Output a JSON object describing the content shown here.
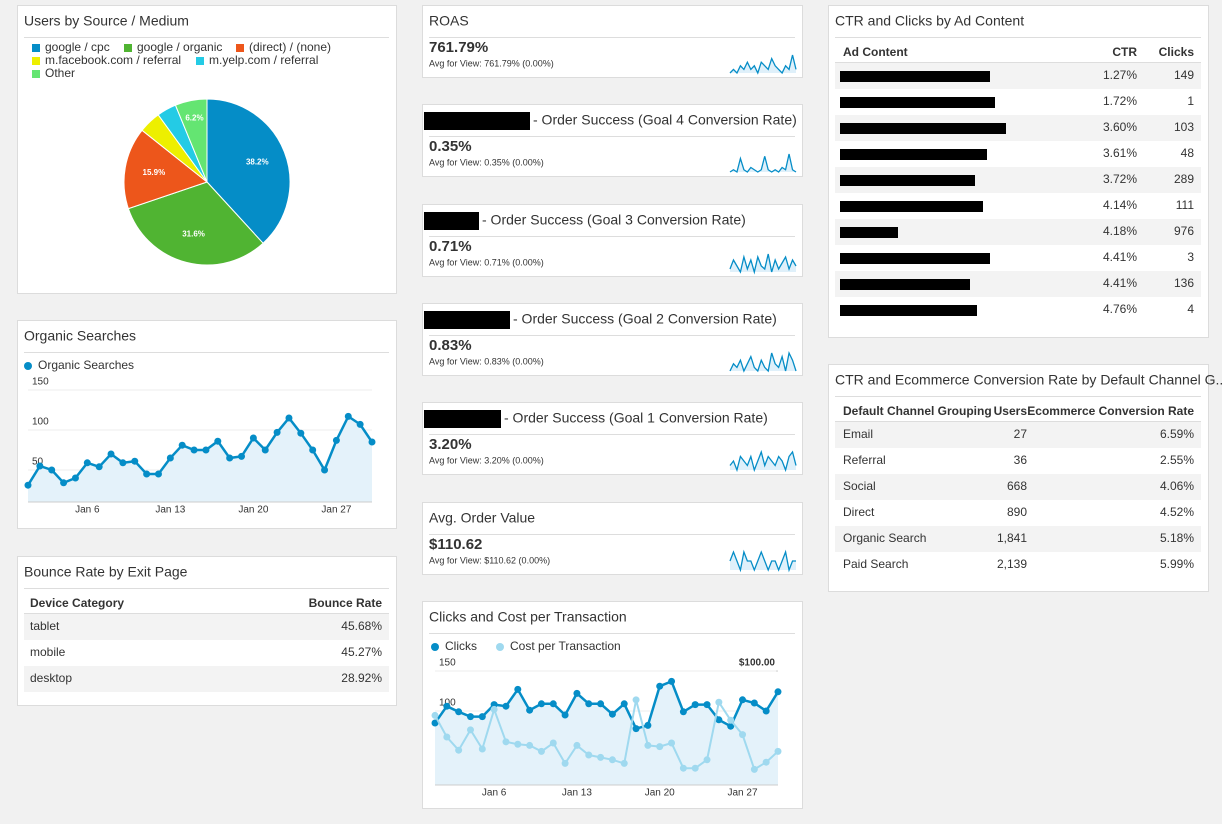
{
  "chart_data": [
    {
      "type": "pie",
      "title": "Users by Source / Medium",
      "categories": [
        "google / cpc",
        "google / organic",
        "(direct) / (none)",
        "m.facebook.com / referral",
        "m.yelp.com / referral",
        "Other"
      ],
      "colors": [
        "#058dc7",
        "#50b432",
        "#ed561b",
        "#edef00",
        "#24cbe5",
        "#64e572"
      ],
      "values": [
        38.2,
        31.6,
        15.9,
        4.3,
        3.8,
        6.2
      ],
      "value_labels": [
        "38.2%",
        "31.6%",
        "15.9%",
        null,
        null,
        "6.2%"
      ]
    },
    {
      "type": "line",
      "title": "Organic Searches",
      "categories": [
        null,
        null,
        null,
        null,
        null,
        "Jan 6",
        null,
        null,
        null,
        null,
        null,
        null,
        "Jan 13",
        null,
        null,
        null,
        null,
        null,
        null,
        "Jan 20",
        null,
        null,
        null,
        null,
        null,
        null,
        "Jan 27",
        null,
        null,
        null
      ],
      "series": [
        {
          "name": "Organic Searches",
          "color": "#058dc7",
          "area": true,
          "values": [
            31,
            55,
            50,
            34,
            40,
            59,
            54,
            70,
            59,
            61,
            45,
            45,
            65,
            81,
            75,
            75,
            86,
            65,
            67,
            90,
            75,
            97,
            115,
            96,
            75,
            50,
            87,
            117,
            107,
            85
          ]
        }
      ],
      "ylim": [
        10,
        160
      ],
      "yticks": [
        50,
        100,
        150
      ],
      "grid": true
    },
    {
      "type": "line",
      "title": "Clicks and Cost per Transaction",
      "categories": [
        null,
        null,
        null,
        null,
        null,
        "Jan 6",
        null,
        null,
        null,
        null,
        null,
        null,
        "Jan 13",
        null,
        null,
        null,
        null,
        null,
        null,
        "Jan 20",
        null,
        null,
        null,
        null,
        null,
        null,
        "Jan 27",
        null,
        null,
        null
      ],
      "series": [
        {
          "name": "Clicks",
          "color": "#058dc7",
          "area": true,
          "values": [
            85,
            106,
            99,
            93,
            93,
            108,
            106,
            127,
            101,
            109,
            109,
            95,
            122,
            109,
            109,
            96,
            109,
            78,
            82,
            131,
            137,
            99,
            108,
            108,
            89,
            81,
            114,
            110,
            100,
            124
          ]
        },
        {
          "name": "Cost per Transaction",
          "color": "#9fd9ef",
          "axis": "y2",
          "values": [
            63,
            45,
            34,
            51,
            35,
            68,
            41,
            39,
            38,
            33,
            40,
            23,
            38,
            30,
            28,
            26,
            23,
            76,
            38,
            37,
            40,
            19,
            19,
            26,
            74,
            59,
            47,
            18,
            24,
            33
          ]
        }
      ],
      "ylim": [
        7.5,
        160
      ],
      "yticks": [
        50,
        100,
        150
      ],
      "y2lim": [
        5,
        106.7
      ],
      "y2ticks": [
        {
          "value": 50,
          "label": "$50.00"
        },
        {
          "value": 100,
          "label": "$100.00"
        }
      ],
      "grid": true
    }
  ],
  "scorecards": [
    {
      "title": "ROAS",
      "value": "761.79%",
      "avg": "Avg for View: 761.79% (0.00%)",
      "sparkline": [
        3,
        4,
        3,
        5,
        4,
        6,
        4,
        5,
        3,
        6,
        5,
        4,
        7,
        5,
        4,
        3,
        5,
        4,
        8,
        4
      ]
    },
    {
      "title": "- Order Success (Goal 4 Conversion Rate)",
      "value": "0.35%",
      "avg": "Avg for View: 0.35% (0.00%)",
      "sparkline": [
        2,
        3,
        2,
        8,
        3,
        2,
        4,
        3,
        2,
        3,
        9,
        3,
        2,
        3,
        2,
        4,
        3,
        10,
        3,
        2
      ]
    },
    {
      "title": "- Order Success (Goal 3 Conversion Rate)",
      "value": "0.71%",
      "avg": "Avg for View: 0.71% (0.00%)",
      "sparkline": [
        3,
        6,
        4,
        2,
        7,
        3,
        6,
        2,
        7,
        4,
        3,
        8,
        2,
        6,
        3,
        5,
        7,
        3,
        6,
        4
      ]
    },
    {
      "title": "- Order Success (Goal 2 Conversion Rate)",
      "value": "0.83%",
      "avg": "Avg for View: 0.83% (0.00%)",
      "sparkline": [
        3,
        5,
        4,
        6,
        3,
        5,
        7,
        4,
        3,
        6,
        4,
        3,
        8,
        5,
        4,
        7,
        3,
        8,
        6,
        3
      ]
    },
    {
      "title": "- Order Success (Goal 1 Conversion Rate)",
      "value": "3.20%",
      "avg": "Avg for View: 3.20% (0.00%)",
      "sparkline": [
        4,
        5,
        3,
        6,
        5,
        4,
        6,
        3,
        5,
        7,
        4,
        6,
        5,
        4,
        6,
        5,
        3,
        6,
        7,
        4
      ]
    },
    {
      "title": "Avg. Order Value",
      "value": "$110.62",
      "avg": "Avg for View: $110.62 (0.00%)",
      "sparkline": [
        5,
        6,
        5,
        4,
        6,
        5,
        5,
        4,
        5,
        6,
        5,
        4,
        5,
        5,
        4,
        5,
        6,
        4,
        5,
        5
      ]
    }
  ],
  "bounce_table": {
    "title": "Bounce Rate by Exit Page",
    "columns": [
      "Device Category",
      "Bounce Rate"
    ],
    "rows": [
      [
        "tablet",
        "45.68%"
      ],
      [
        "mobile",
        "45.27%"
      ],
      [
        "desktop",
        "28.92%"
      ]
    ]
  },
  "ad_table": {
    "title": "CTR and Clicks by Ad Content",
    "columns": [
      "Ad Content",
      "CTR",
      "Clicks"
    ],
    "rows": [
      [
        "1.27%",
        "149"
      ],
      [
        "1.72%",
        "1"
      ],
      [
        "3.60%",
        "103"
      ],
      [
        "3.61%",
        "48"
      ],
      [
        "3.72%",
        "289"
      ],
      [
        "4.14%",
        "111"
      ],
      [
        "4.18%",
        "976"
      ],
      [
        "4.41%",
        "3"
      ],
      [
        "4.41%",
        "136"
      ],
      [
        "4.76%",
        "4"
      ]
    ]
  },
  "channel_table": {
    "title": "CTR and Ecommerce Conversion Rate by Default Channel G...",
    "columns": [
      "Default Channel Grouping",
      "Users",
      "Ecommerce Conversion Rate"
    ],
    "rows": [
      [
        "Email",
        "27",
        "6.59%"
      ],
      [
        "Referral",
        "36",
        "2.55%"
      ],
      [
        "Social",
        "668",
        "4.06%"
      ],
      [
        "Direct",
        "890",
        "4.52%"
      ],
      [
        "Organic Search",
        "1,841",
        "5.18%"
      ],
      [
        "Paid Search",
        "2,139",
        "5.99%"
      ]
    ]
  }
}
